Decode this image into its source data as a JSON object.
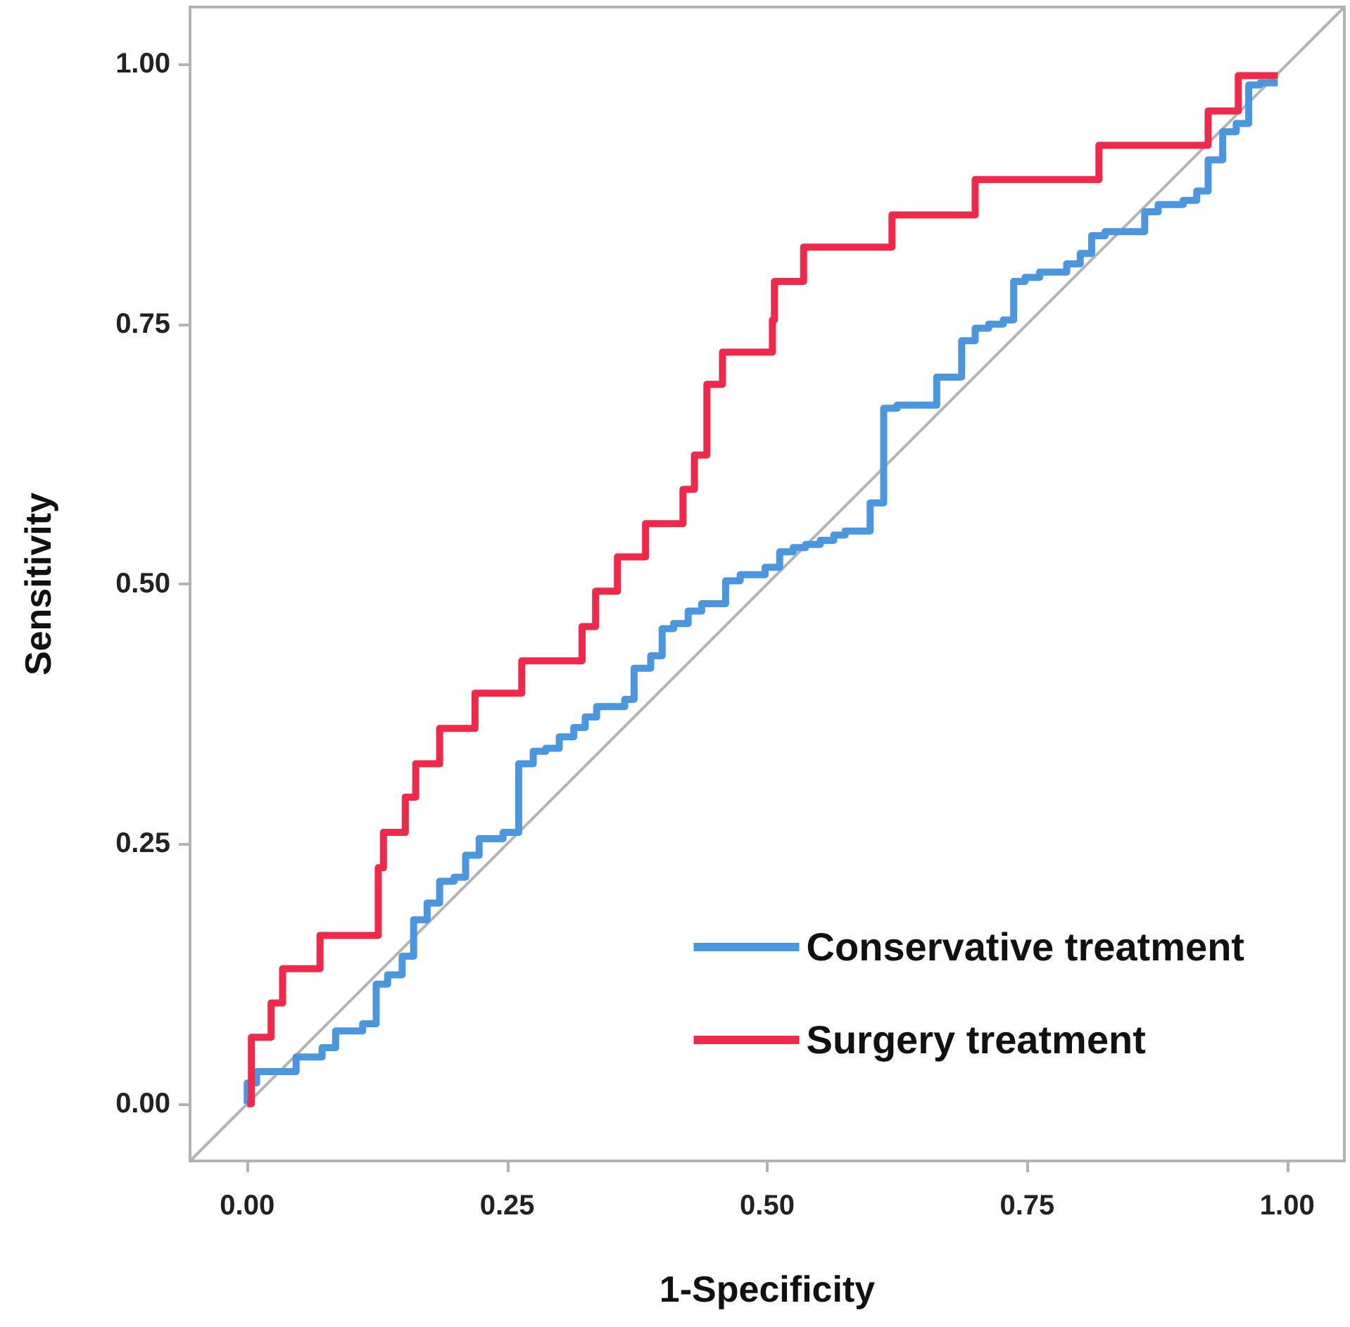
{
  "chart_data": {
    "type": "line",
    "xlabel": "1-Specificity",
    "ylabel": "Sensitivity",
    "legend": "bottom right",
    "marker": "none",
    "xlim": [
      -0.055,
      1.055
    ],
    "ylim": [
      -0.055,
      1.055
    ],
    "xticks": [
      {
        "value": 0,
        "label": "0.00"
      },
      {
        "value": 0.25,
        "label": "0.25"
      },
      {
        "value": 0.5,
        "label": "0.50"
      },
      {
        "value": 0.75,
        "label": "0.75"
      },
      {
        "value": 1,
        "label": "1.00"
      }
    ],
    "yticks": [
      {
        "value": 0,
        "label": "0.00"
      },
      {
        "value": 0.25,
        "label": "0.25"
      },
      {
        "value": 0.5,
        "label": "0.50"
      },
      {
        "value": 0.75,
        "label": "0.75"
      },
      {
        "value": 1,
        "label": "1.00"
      }
    ],
    "series": [
      {
        "type": "line",
        "color": "#b3b3b3",
        "x": [
          -0.055,
          1.055
        ],
        "values": [
          -0.055,
          1.055
        ]
      },
      {
        "type": "step",
        "name": "Conservative treatment",
        "color": "#4a97e0",
        "x": [
          0,
          0,
          0.009,
          0.047,
          0.072,
          0.085,
          0.111,
          0.124,
          0.135,
          0.149,
          0.16,
          0.173,
          0.185,
          0.199,
          0.21,
          0.223,
          0.246,
          0.261,
          0.275,
          0.287,
          0.3,
          0.314,
          0.325,
          0.336,
          0.363,
          0.372,
          0.388,
          0.399,
          0.41,
          0.424,
          0.437,
          0.46,
          0.474,
          0.498,
          0.512,
          0.525,
          0.537,
          0.551,
          0.564,
          0.575,
          0.599,
          0.612,
          0.625,
          0.663,
          0.687,
          0.7,
          0.713,
          0.727,
          0.737,
          0.748,
          0.762,
          0.788,
          0.801,
          0.812,
          0.825,
          0.863,
          0.876,
          0.9,
          0.913,
          0.924,
          0.938,
          0.951,
          0.963,
          0.974,
          0.991
        ],
        "values": [
          0,
          0.02,
          0.031,
          0.045,
          0.054,
          0.07,
          0.077,
          0.115,
          0.124,
          0.142,
          0.177,
          0.193,
          0.214,
          0.218,
          0.239,
          0.255,
          0.261,
          0.327,
          0.339,
          0.342,
          0.353,
          0.362,
          0.372,
          0.382,
          0.389,
          0.419,
          0.431,
          0.457,
          0.462,
          0.474,
          0.481,
          0.503,
          0.509,
          0.516,
          0.531,
          0.535,
          0.538,
          0.542,
          0.547,
          0.551,
          0.578,
          0.669,
          0.672,
          0.699,
          0.734,
          0.746,
          0.75,
          0.754,
          0.791,
          0.795,
          0.8,
          0.808,
          0.818,
          0.835,
          0.839,
          0.858,
          0.865,
          0.869,
          0.878,
          0.908,
          0.935,
          0.943,
          0.98,
          0.982,
          0.982
        ]
      },
      {
        "type": "step",
        "name": "Surgery treatment",
        "color": "#f0284a",
        "x": [
          0,
          0.004,
          0.023,
          0.034,
          0.07,
          0.126,
          0.131,
          0.152,
          0.162,
          0.185,
          0.219,
          0.264,
          0.322,
          0.335,
          0.356,
          0.383,
          0.419,
          0.43,
          0.442,
          0.457,
          0.505,
          0.507,
          0.535,
          0.62,
          0.7,
          0.819,
          0.924,
          0.953,
          0.991
        ],
        "values": [
          0,
          0.064,
          0.097,
          0.13,
          0.162,
          0.227,
          0.261,
          0.295,
          0.327,
          0.361,
          0.395,
          0.426,
          0.459,
          0.493,
          0.526,
          0.558,
          0.591,
          0.624,
          0.692,
          0.723,
          0.754,
          0.791,
          0.824,
          0.855,
          0.889,
          0.922,
          0.955,
          0.989,
          0.989
        ]
      }
    ]
  }
}
